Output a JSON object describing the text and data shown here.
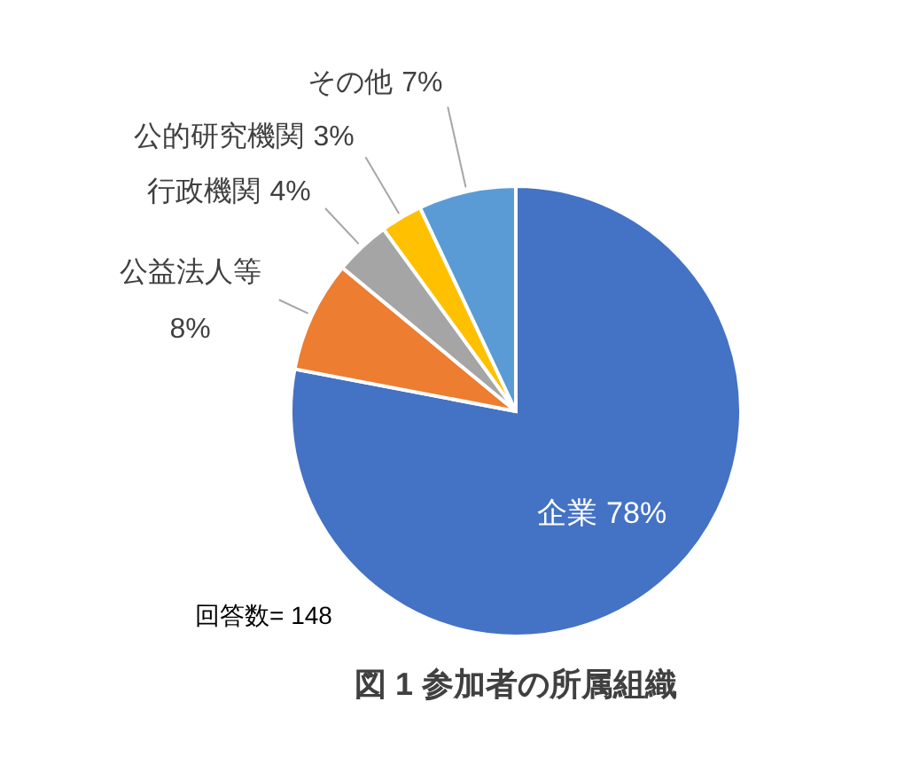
{
  "chart_data": {
    "type": "pie",
    "title": "図 1  参加者の所属組織",
    "categories": [
      "企業",
      "公益法人等",
      "行政機関",
      "公的研究機関",
      "その他"
    ],
    "values": [
      78,
      8,
      4,
      3,
      7
    ],
    "colors": [
      "#4472c4",
      "#ed7d31",
      "#a5a5a5",
      "#ffc000",
      "#5b9bd5"
    ],
    "value_labels": [
      "78%",
      "8%",
      "4%",
      "3%",
      "7%"
    ],
    "annotations": [
      "回答数= 148"
    ]
  }
}
